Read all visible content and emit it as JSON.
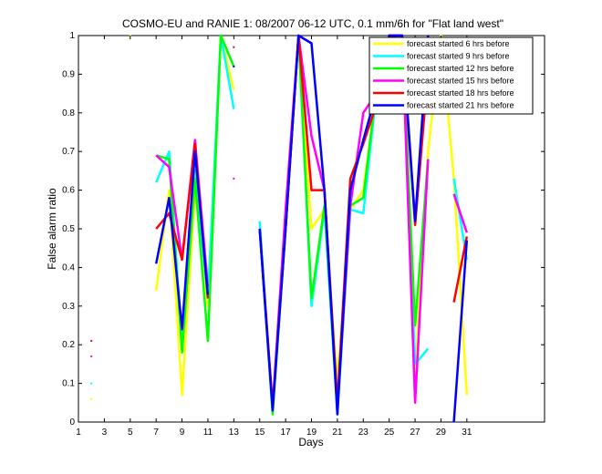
{
  "chart_data": {
    "type": "line",
    "title": "COSMO-EU and RANIE 1: 08/2007 06-12 UTC, 0.1 mm/6h for \"Flat land west\"",
    "xlabel": "Days",
    "ylabel": "False alarm ratio",
    "xlim": [
      1,
      37
    ],
    "ylim": [
      0,
      1
    ],
    "x_ticks": [
      1,
      3,
      5,
      7,
      9,
      11,
      13,
      15,
      17,
      19,
      21,
      23,
      25,
      27,
      29,
      31
    ],
    "y_ticks": [
      0,
      0.1,
      0.2,
      0.3,
      0.4,
      0.5,
      0.6,
      0.7,
      0.8,
      0.9,
      1
    ],
    "y_tick_labels": [
      "0",
      "0.1",
      "0.2",
      "0.3",
      "0.4",
      "0.5",
      "0.6",
      "0.7",
      "0.8",
      "0.9",
      "1"
    ],
    "legend_position": "top-right",
    "grid": false,
    "series": [
      {
        "name": "forecast started 6 hrs before",
        "color": "#ffff00",
        "values": [
          null,
          0.06,
          null,
          null,
          1.0,
          null,
          0.34,
          0.6,
          0.07,
          0.6,
          0.3,
          1.0,
          0.86,
          null,
          0.5,
          0.05,
          0.5,
          1.0,
          0.5,
          0.55,
          0.1,
          0.55,
          0.6,
          0.85,
          1.0,
          1.0,
          0.12,
          0.7,
          1.0,
          0.63,
          0.07
        ]
      },
      {
        "name": "forecast started 9 hrs before",
        "color": "#00ffff",
        "values": [
          null,
          0.1,
          null,
          null,
          null,
          null,
          0.62,
          0.7,
          0.2,
          0.65,
          0.32,
          1.0,
          0.81,
          null,
          0.52,
          0.03,
          0.5,
          1.0,
          0.3,
          0.55,
          0.02,
          0.55,
          0.54,
          0.85,
          1.0,
          1.0,
          0.15,
          0.19,
          null,
          0.63,
          0.42
        ]
      },
      {
        "name": "forecast started 12 hrs before",
        "color": "#00ff00",
        "values": [
          null,
          null,
          null,
          null,
          null,
          null,
          0.69,
          0.68,
          0.18,
          0.63,
          0.21,
          1.0,
          0.92,
          null,
          0.5,
          0.02,
          0.5,
          1.0,
          0.32,
          0.56,
          0.05,
          0.56,
          0.58,
          0.86,
          1.0,
          1.0,
          0.25,
          0.68,
          null,
          null,
          null
        ]
      },
      {
        "name": "forecast started 15 hrs before",
        "color": "#ff00ff",
        "values": [
          null,
          0.17,
          null,
          null,
          null,
          null,
          0.69,
          0.66,
          0.42,
          0.73,
          0.35,
          null,
          0.63,
          null,
          0.5,
          0.04,
          0.55,
          1.0,
          0.74,
          0.6,
          0.03,
          0.56,
          0.8,
          0.85,
          1.0,
          1.0,
          0.05,
          0.68,
          null,
          0.59,
          0.49
        ]
      },
      {
        "name": "forecast started 18 hrs before",
        "color": "#ff0000",
        "values": [
          null,
          0.21,
          null,
          null,
          null,
          null,
          0.5,
          0.54,
          0.42,
          0.72,
          0.32,
          null,
          0.97,
          null,
          0.5,
          0.04,
          0.5,
          1.0,
          0.6,
          0.6,
          0.05,
          0.63,
          0.72,
          0.82,
          1.0,
          0.99,
          0.51,
          0.91,
          null,
          0.31,
          0.48
        ]
      },
      {
        "name": "forecast started 21 hrs before",
        "color": "#0000ff",
        "values": [
          null,
          null,
          null,
          null,
          null,
          null,
          0.41,
          0.58,
          0.24,
          0.7,
          0.33,
          null,
          0.92,
          null,
          0.5,
          0.03,
          0.5,
          1.0,
          0.98,
          0.6,
          0.02,
          0.6,
          0.73,
          0.85,
          1.0,
          1.0,
          0.52,
          1.0,
          null,
          0.0,
          0.47
        ]
      }
    ]
  }
}
